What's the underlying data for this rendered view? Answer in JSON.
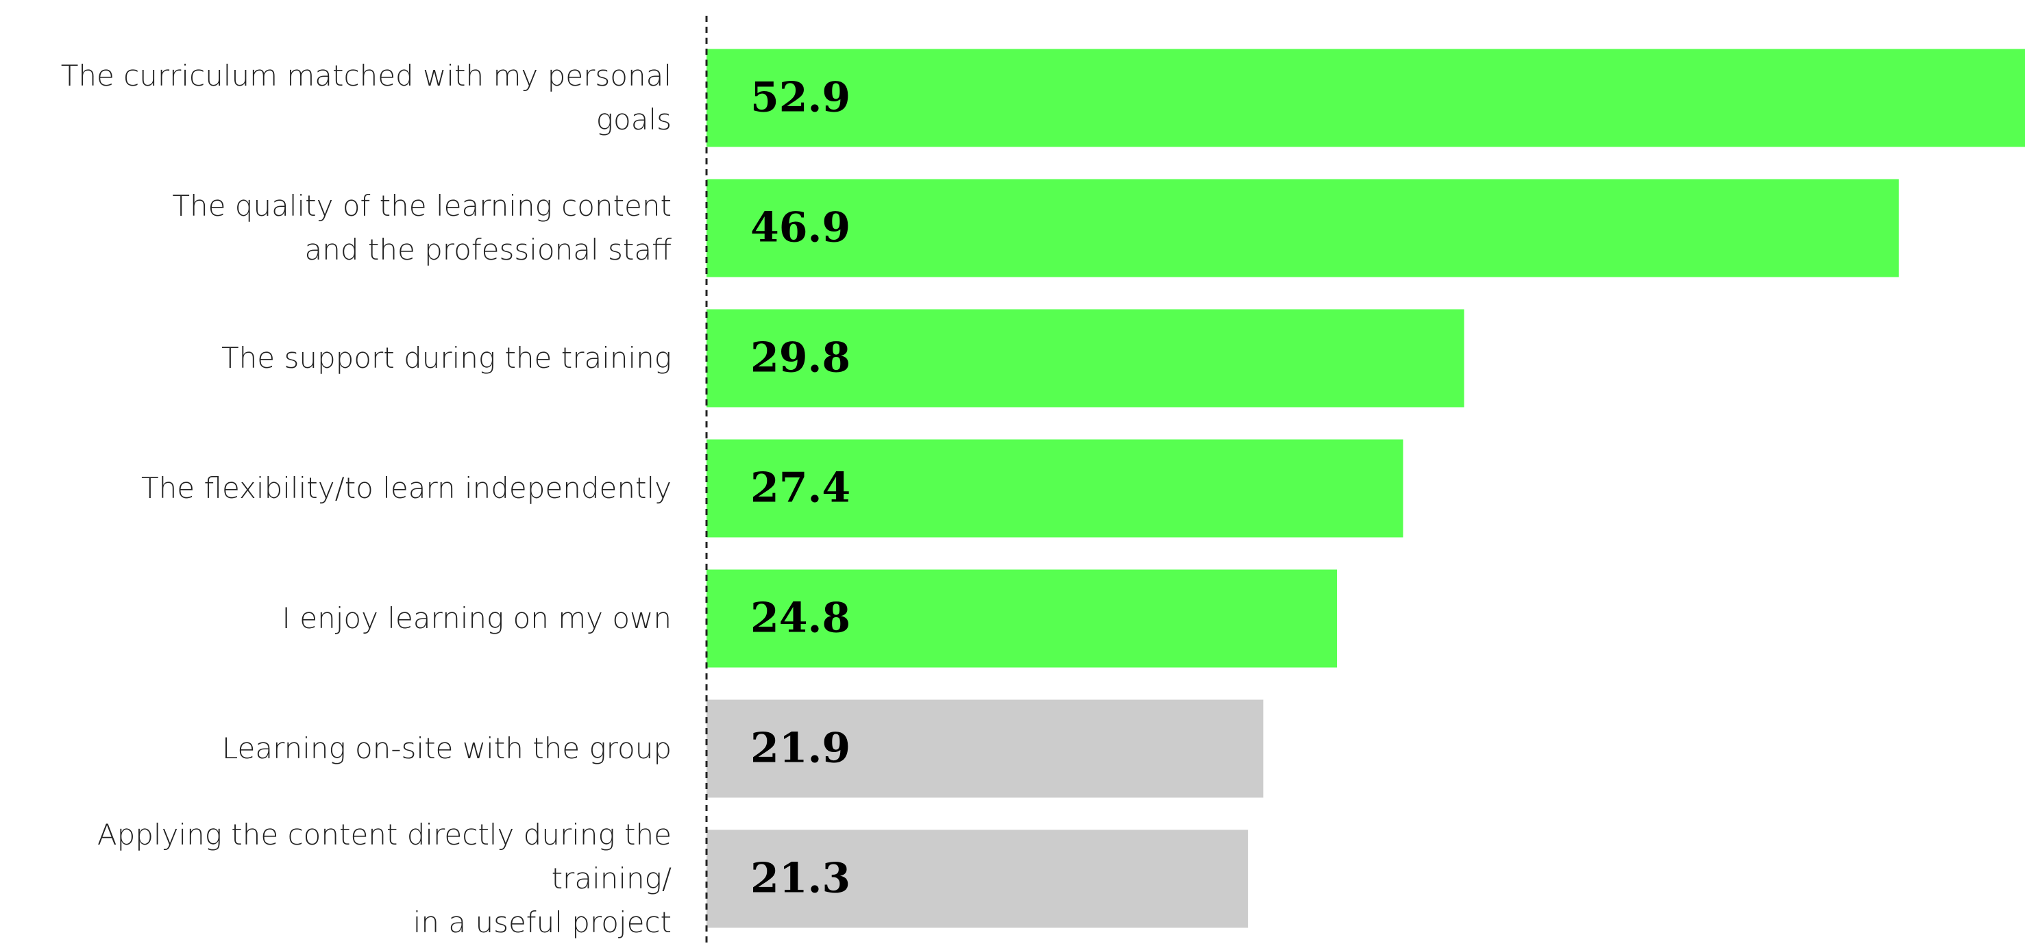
{
  "chart_data": {
    "type": "barh",
    "categories": [
      "The curriculum matched with my personal goals",
      "The quality of the learning content\nand the professional staff",
      "The support during the training",
      "The flexibility/to learn independently",
      "I enjoy learning on my own",
      "Learning on-site with the group",
      "Applying the content directly during the training/\nin a useful project"
    ],
    "values": [
      52.9,
      46.9,
      29.8,
      27.4,
      24.8,
      21.9,
      21.3
    ],
    "colors": [
      "#57ff50",
      "#57ff50",
      "#57ff50",
      "#57ff50",
      "#57ff50",
      "#cccccc",
      "#cccccc"
    ],
    "xlim": [
      0,
      52
    ]
  }
}
